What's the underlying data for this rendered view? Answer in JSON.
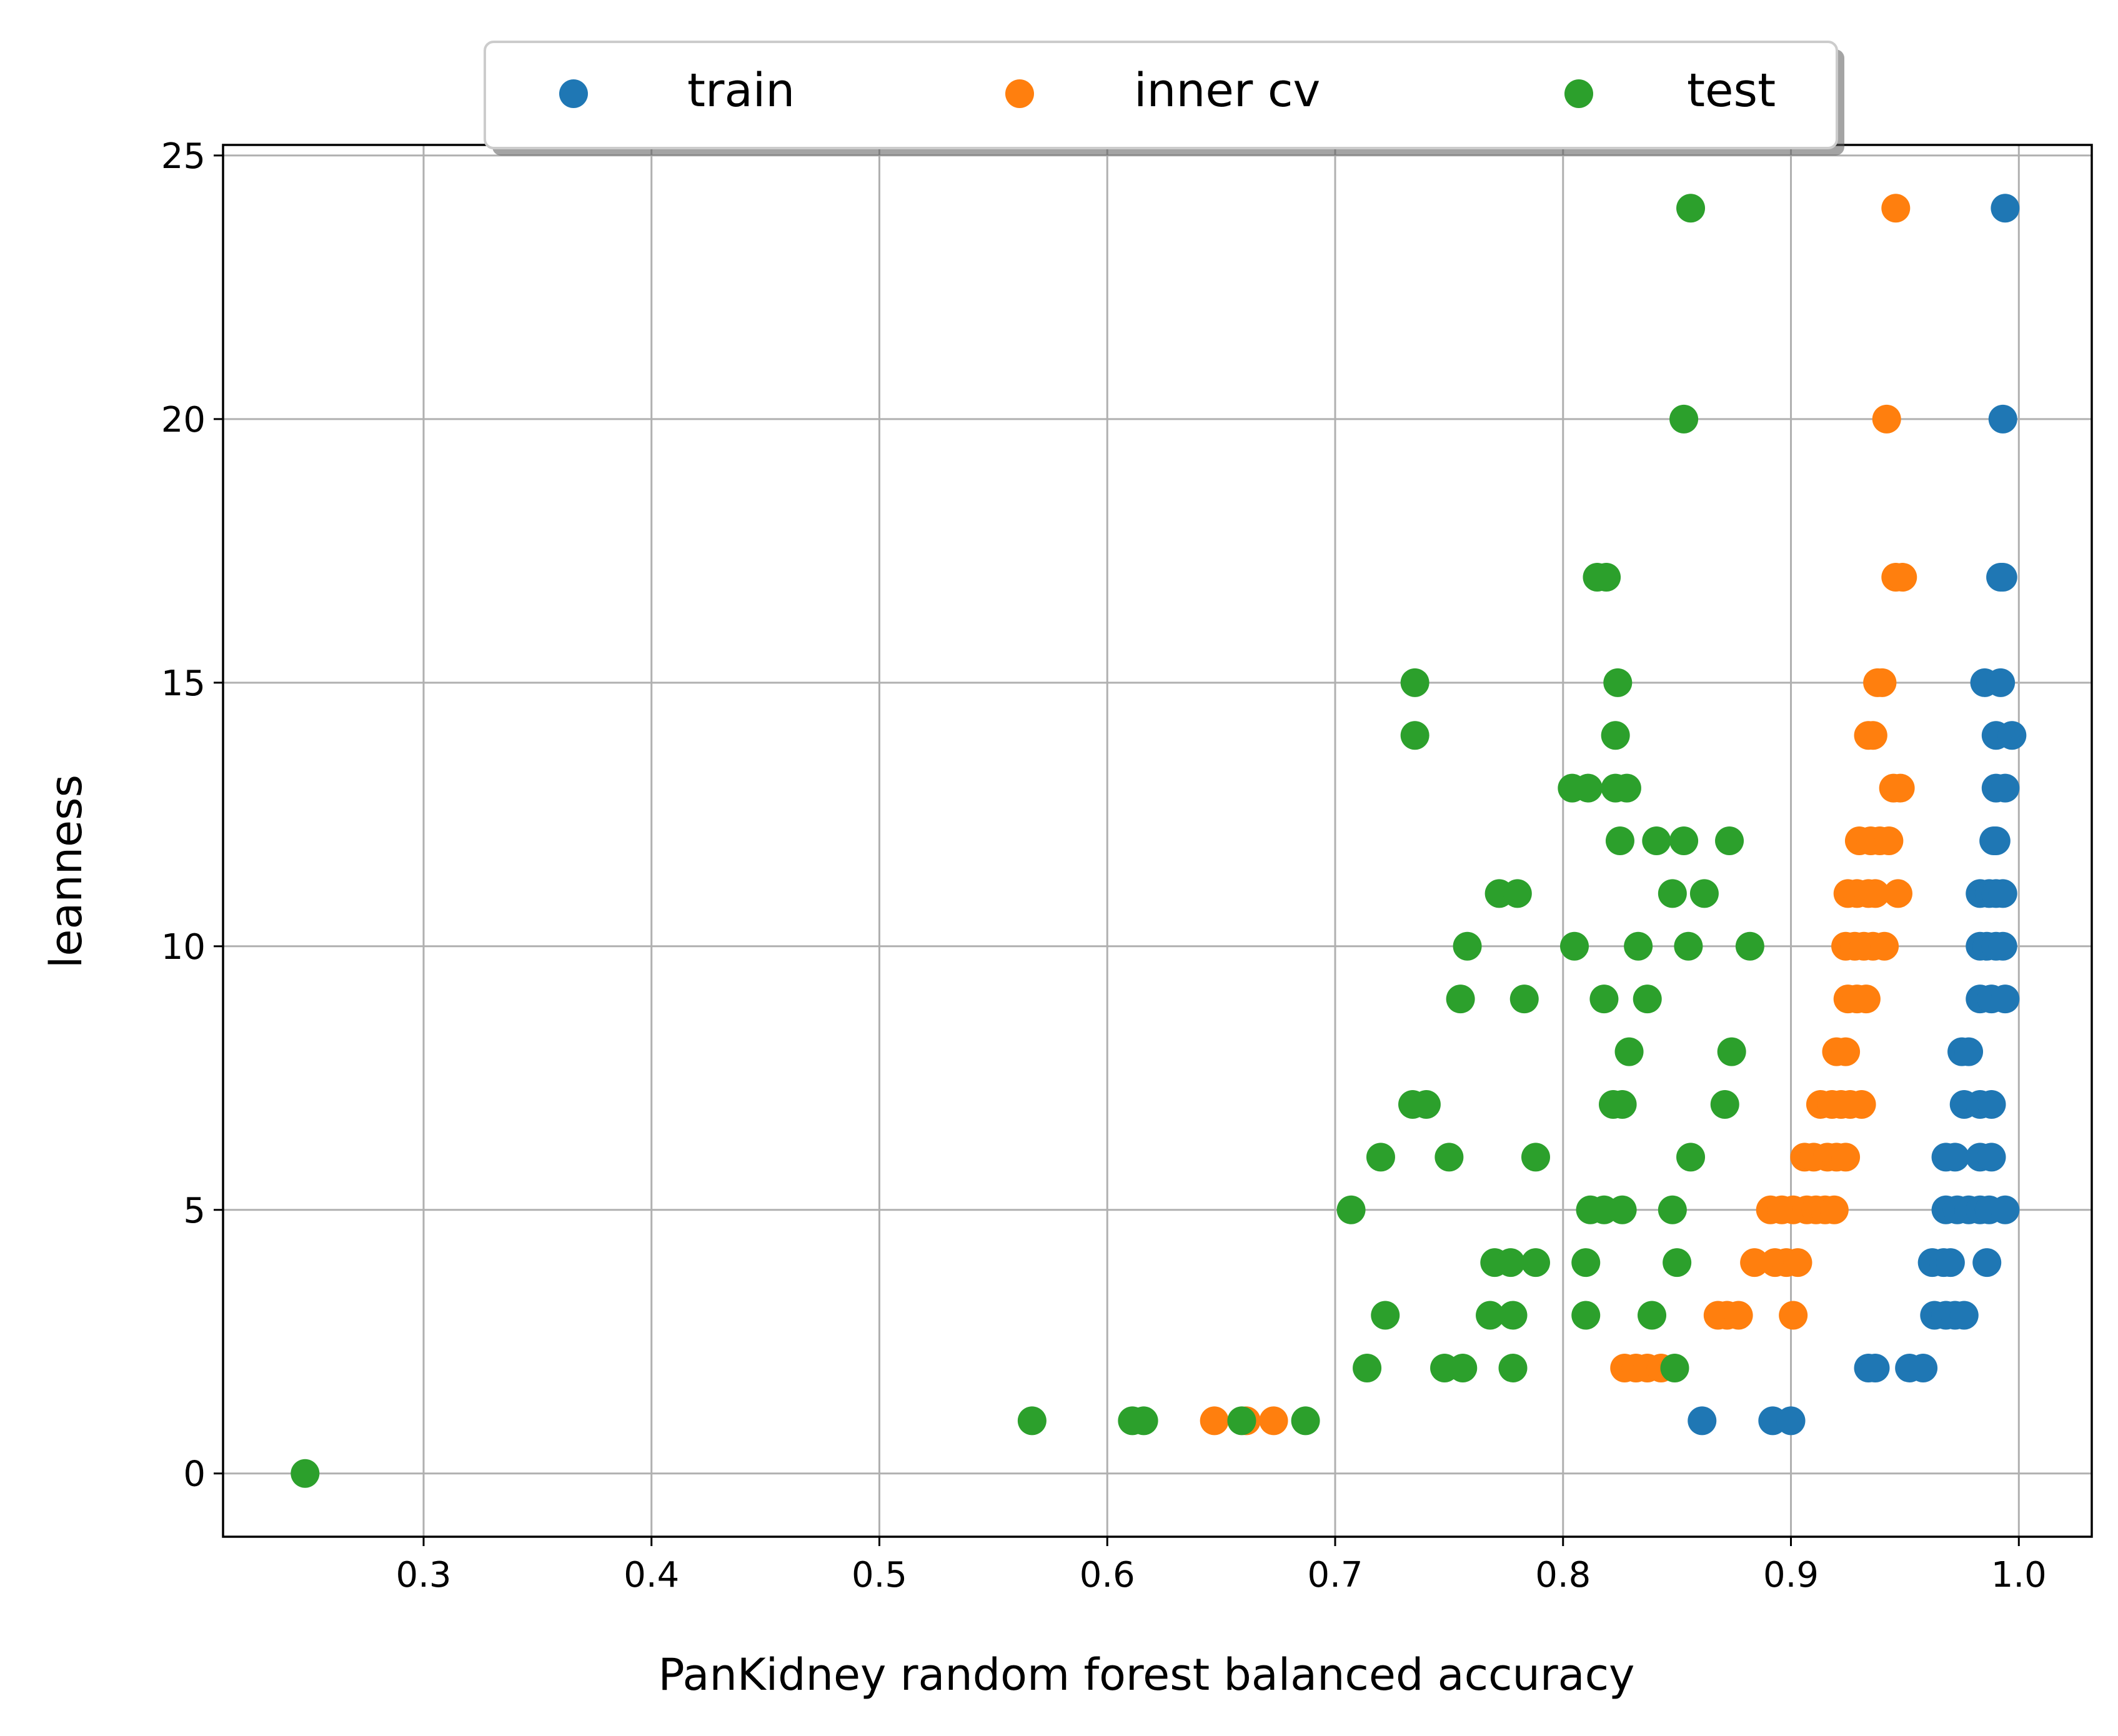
{
  "chart_data": {
    "type": "scatter",
    "xlabel": "PanKidney random forest balanced accuracy",
    "ylabel": "leanness",
    "xlim": [
      0.212,
      1.032
    ],
    "ylim": [
      -1.2,
      25.2
    ],
    "xticks": [
      0.3,
      0.4,
      0.5,
      0.6,
      0.7,
      0.8,
      0.9,
      1.0
    ],
    "xtick_labels": [
      "0.3",
      "0.4",
      "0.5",
      "0.6",
      "0.7",
      "0.8",
      "0.9",
      "1.0"
    ],
    "yticks": [
      0,
      5,
      10,
      15,
      20,
      25
    ],
    "ytick_labels": [
      "0",
      "5",
      "10",
      "15",
      "20",
      "25"
    ],
    "grid": true,
    "legend": {
      "placement": "top-center-outside",
      "columns": 3
    },
    "series": [
      {
        "name": "train",
        "color": "#1f77b4",
        "points": [
          [
            0.994,
            24
          ],
          [
            0.993,
            20
          ],
          [
            0.992,
            17
          ],
          [
            0.993,
            17
          ],
          [
            0.985,
            15
          ],
          [
            0.992,
            15
          ],
          [
            0.99,
            14
          ],
          [
            0.997,
            14
          ],
          [
            0.99,
            13
          ],
          [
            0.994,
            13
          ],
          [
            0.989,
            12
          ],
          [
            0.99,
            12
          ],
          [
            0.983,
            11
          ],
          [
            0.987,
            11
          ],
          [
            0.99,
            11
          ],
          [
            0.993,
            11
          ],
          [
            0.983,
            10
          ],
          [
            0.986,
            10
          ],
          [
            0.99,
            10
          ],
          [
            0.993,
            10
          ],
          [
            0.983,
            9
          ],
          [
            0.988,
            9
          ],
          [
            0.994,
            9
          ],
          [
            0.975,
            8
          ],
          [
            0.978,
            8
          ],
          [
            0.976,
            7
          ],
          [
            0.983,
            7
          ],
          [
            0.988,
            7
          ],
          [
            0.968,
            6
          ],
          [
            0.972,
            6
          ],
          [
            0.983,
            6
          ],
          [
            0.988,
            6
          ],
          [
            0.968,
            5
          ],
          [
            0.973,
            5
          ],
          [
            0.978,
            5
          ],
          [
            0.983,
            5
          ],
          [
            0.987,
            5
          ],
          [
            0.994,
            5
          ],
          [
            0.962,
            4
          ],
          [
            0.967,
            4
          ],
          [
            0.97,
            4
          ],
          [
            0.986,
            4
          ],
          [
            0.963,
            3
          ],
          [
            0.968,
            3
          ],
          [
            0.972,
            3
          ],
          [
            0.976,
            3
          ],
          [
            0.934,
            2
          ],
          [
            0.937,
            2
          ],
          [
            0.952,
            2
          ],
          [
            0.958,
            2
          ],
          [
            0.861,
            1
          ],
          [
            0.892,
            1
          ],
          [
            0.9,
            1
          ]
        ]
      },
      {
        "name": "inner cv",
        "color": "#ff7f0e",
        "points": [
          [
            0.946,
            24
          ],
          [
            0.942,
            20
          ],
          [
            0.946,
            17
          ],
          [
            0.949,
            17
          ],
          [
            0.938,
            15
          ],
          [
            0.94,
            15
          ],
          [
            0.934,
            14
          ],
          [
            0.936,
            14
          ],
          [
            0.945,
            13
          ],
          [
            0.948,
            13
          ],
          [
            0.93,
            12
          ],
          [
            0.935,
            12
          ],
          [
            0.939,
            12
          ],
          [
            0.943,
            12
          ],
          [
            0.925,
            11
          ],
          [
            0.929,
            11
          ],
          [
            0.934,
            11
          ],
          [
            0.937,
            11
          ],
          [
            0.947,
            11
          ],
          [
            0.924,
            10
          ],
          [
            0.928,
            10
          ],
          [
            0.932,
            10
          ],
          [
            0.936,
            10
          ],
          [
            0.941,
            10
          ],
          [
            0.925,
            9
          ],
          [
            0.929,
            9
          ],
          [
            0.933,
            9
          ],
          [
            0.92,
            8
          ],
          [
            0.924,
            8
          ],
          [
            0.913,
            7
          ],
          [
            0.918,
            7
          ],
          [
            0.922,
            7
          ],
          [
            0.926,
            7
          ],
          [
            0.931,
            7
          ],
          [
            0.906,
            6
          ],
          [
            0.91,
            6
          ],
          [
            0.916,
            6
          ],
          [
            0.92,
            6
          ],
          [
            0.924,
            6
          ],
          [
            0.891,
            5
          ],
          [
            0.896,
            5
          ],
          [
            0.901,
            5
          ],
          [
            0.907,
            5
          ],
          [
            0.911,
            5
          ],
          [
            0.915,
            5
          ],
          [
            0.919,
            5
          ],
          [
            0.884,
            4
          ],
          [
            0.893,
            4
          ],
          [
            0.898,
            4
          ],
          [
            0.903,
            4
          ],
          [
            0.868,
            3
          ],
          [
            0.872,
            3
          ],
          [
            0.877,
            3
          ],
          [
            0.901,
            3
          ],
          [
            0.827,
            2
          ],
          [
            0.832,
            2
          ],
          [
            0.837,
            2
          ],
          [
            0.843,
            2
          ],
          [
            0.647,
            1
          ],
          [
            0.661,
            1
          ],
          [
            0.673,
            1
          ]
        ]
      },
      {
        "name": "test",
        "color": "#2ca02c",
        "points": [
          [
            0.856,
            24
          ],
          [
            0.853,
            20
          ],
          [
            0.815,
            17
          ],
          [
            0.819,
            17
          ],
          [
            0.735,
            15
          ],
          [
            0.824,
            15
          ],
          [
            0.735,
            14
          ],
          [
            0.823,
            14
          ],
          [
            0.804,
            13
          ],
          [
            0.811,
            13
          ],
          [
            0.823,
            13
          ],
          [
            0.828,
            13
          ],
          [
            0.825,
            12
          ],
          [
            0.841,
            12
          ],
          [
            0.853,
            12
          ],
          [
            0.873,
            12
          ],
          [
            0.772,
            11
          ],
          [
            0.78,
            11
          ],
          [
            0.848,
            11
          ],
          [
            0.862,
            11
          ],
          [
            0.758,
            10
          ],
          [
            0.805,
            10
          ],
          [
            0.833,
            10
          ],
          [
            0.855,
            10
          ],
          [
            0.882,
            10
          ],
          [
            0.755,
            9
          ],
          [
            0.783,
            9
          ],
          [
            0.818,
            9
          ],
          [
            0.837,
            9
          ],
          [
            0.829,
            8
          ],
          [
            0.874,
            8
          ],
          [
            0.734,
            7
          ],
          [
            0.74,
            7
          ],
          [
            0.822,
            7
          ],
          [
            0.826,
            7
          ],
          [
            0.871,
            7
          ],
          [
            0.72,
            6
          ],
          [
            0.75,
            6
          ],
          [
            0.788,
            6
          ],
          [
            0.856,
            6
          ],
          [
            0.707,
            5
          ],
          [
            0.812,
            5
          ],
          [
            0.818,
            5
          ],
          [
            0.826,
            5
          ],
          [
            0.848,
            5
          ],
          [
            0.77,
            4
          ],
          [
            0.777,
            4
          ],
          [
            0.788,
            4
          ],
          [
            0.81,
            4
          ],
          [
            0.85,
            4
          ],
          [
            0.722,
            3
          ],
          [
            0.768,
            3
          ],
          [
            0.778,
            3
          ],
          [
            0.81,
            3
          ],
          [
            0.839,
            3
          ],
          [
            0.714,
            2
          ],
          [
            0.748,
            2
          ],
          [
            0.756,
            2
          ],
          [
            0.778,
            2
          ],
          [
            0.849,
            2
          ],
          [
            0.567,
            1
          ],
          [
            0.611,
            1
          ],
          [
            0.616,
            1
          ],
          [
            0.659,
            1
          ],
          [
            0.687,
            1
          ],
          [
            0.248,
            0
          ]
        ]
      }
    ]
  }
}
